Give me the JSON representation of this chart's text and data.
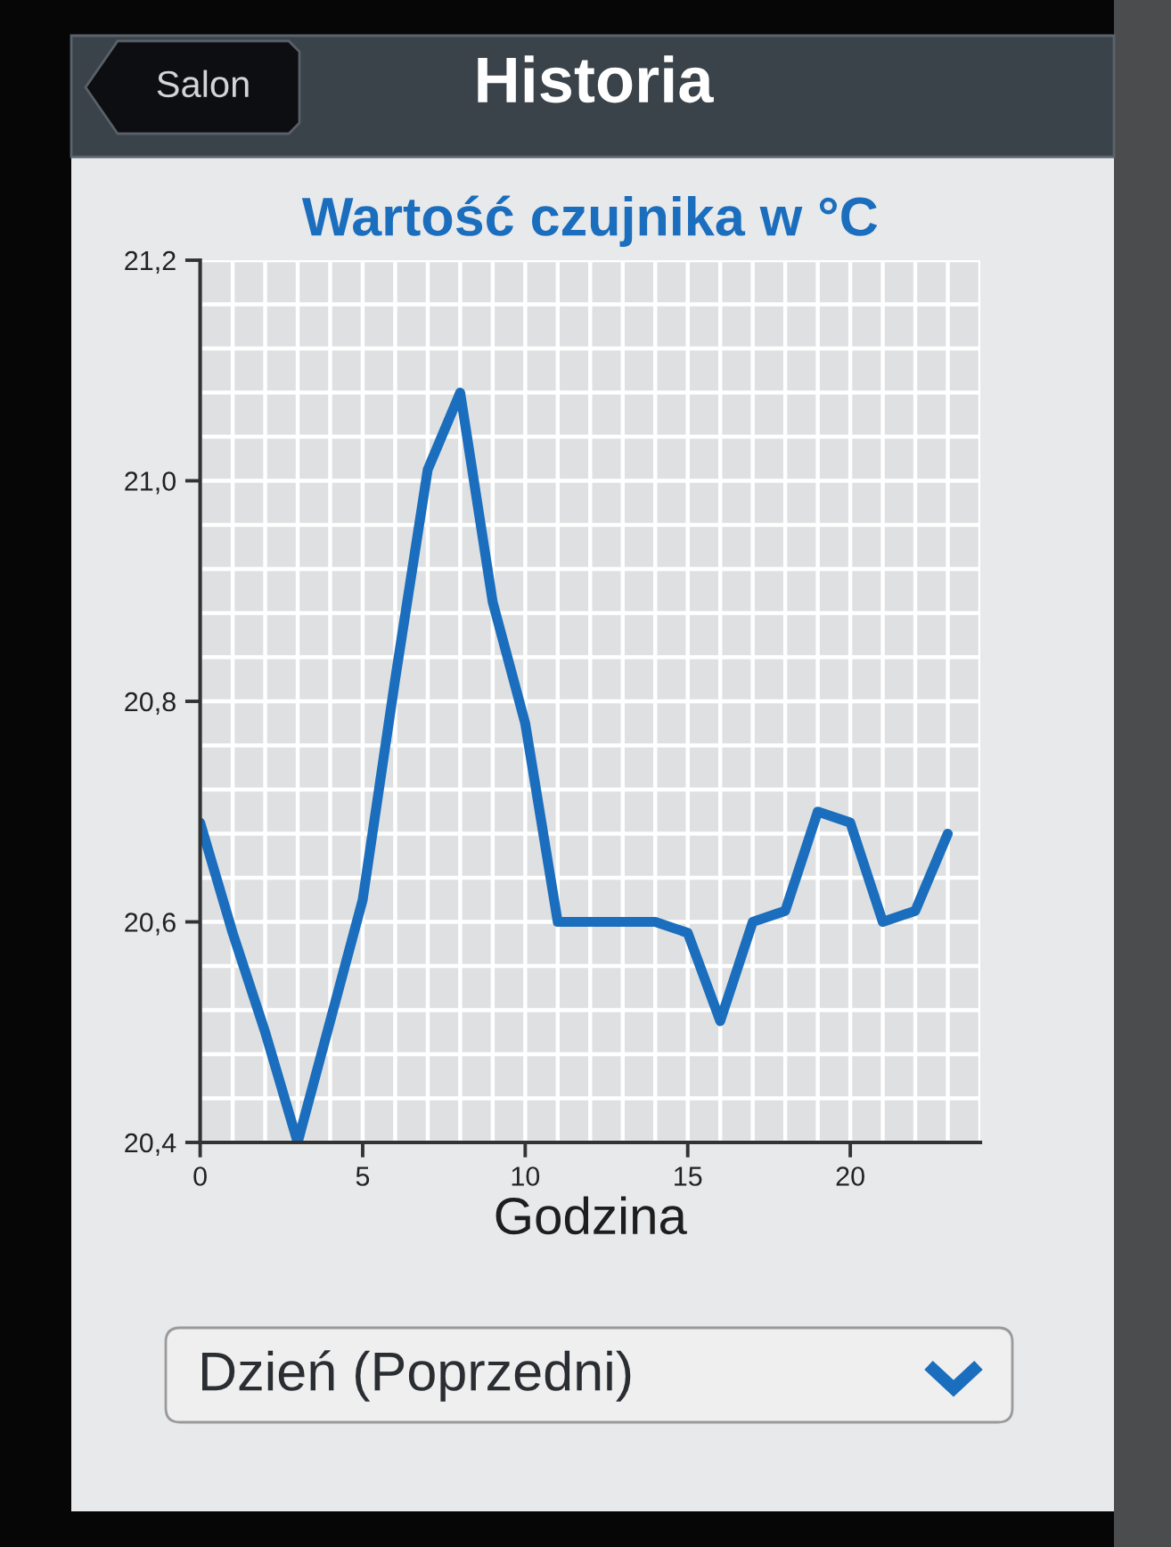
{
  "chart_data": {
    "type": "line",
    "title": "Wartość czujnika w °C",
    "xlabel": "Godzina",
    "annotations": [
      "Historia",
      "Salon",
      "Dzień (Poprzedni)"
    ],
    "x": [
      0,
      1,
      2,
      3,
      4,
      5,
      6,
      7,
      8,
      9,
      10,
      11,
      12,
      13,
      14,
      15,
      16,
      17,
      18,
      19,
      20,
      21,
      22,
      23
    ],
    "series": [
      {
        "color": "#1a6ebd",
        "values": [
          20.69,
          20.59,
          20.5,
          20.4,
          20.51,
          20.62,
          20.82,
          21.01,
          21.08,
          20.89,
          20.78,
          20.6,
          20.6,
          20.6,
          20.6,
          20.59,
          20.51,
          20.6,
          20.61,
          20.7,
          20.69,
          20.6,
          20.61,
          20.68
        ]
      }
    ],
    "xlim": [
      0,
      24
    ],
    "xticks": [
      0,
      {
        "value": 1,
        "label": null
      },
      {
        "value": 2,
        "label": null
      },
      {
        "value": 3,
        "label": null
      },
      {
        "value": 4,
        "label": null
      },
      5,
      {
        "value": 6,
        "label": null
      },
      {
        "value": 7,
        "label": null
      },
      {
        "value": 8,
        "label": null
      },
      {
        "value": 9,
        "label": null
      },
      10,
      {
        "value": 11,
        "label": null
      },
      {
        "value": 12,
        "label": null
      },
      {
        "value": 13,
        "label": null
      },
      {
        "value": 14,
        "label": null
      },
      15,
      {
        "value": 16,
        "label": null
      },
      {
        "value": 17,
        "label": null
      },
      {
        "value": 18,
        "label": null
      },
      {
        "value": 19,
        "label": null
      },
      20,
      {
        "value": 21,
        "label": null
      },
      {
        "value": 22,
        "label": null
      },
      {
        "value": 23,
        "label": null
      },
      {
        "value": 24,
        "label": null
      }
    ],
    "ylim": [
      20.4,
      21.2
    ],
    "yticks": [
      {
        "value": 20.4,
        "label": "20,4"
      },
      {
        "value": 20.44,
        "label": null
      },
      {
        "value": 20.48,
        "label": null
      },
      {
        "value": 20.52,
        "label": null
      },
      {
        "value": 20.56,
        "label": null
      },
      {
        "value": 20.6,
        "label": "20,6"
      },
      {
        "value": 20.64,
        "label": null
      },
      {
        "value": 20.68,
        "label": null
      },
      {
        "value": 20.72,
        "label": null
      },
      {
        "value": 20.76,
        "label": null
      },
      {
        "value": 20.8,
        "label": "20,8"
      },
      {
        "value": 20.84,
        "label": null
      },
      {
        "value": 20.88,
        "label": null
      },
      {
        "value": 20.92,
        "label": null
      },
      {
        "value": 20.96,
        "label": null
      },
      {
        "value": 21.0,
        "label": "21,0"
      },
      {
        "value": 21.04,
        "label": null
      },
      {
        "value": 21.08,
        "label": null
      },
      {
        "value": 21.12,
        "label": null
      },
      {
        "value": 21.16,
        "label": null
      },
      {
        "value": 21.2,
        "label": "21,2"
      }
    ],
    "grid": true
  }
}
